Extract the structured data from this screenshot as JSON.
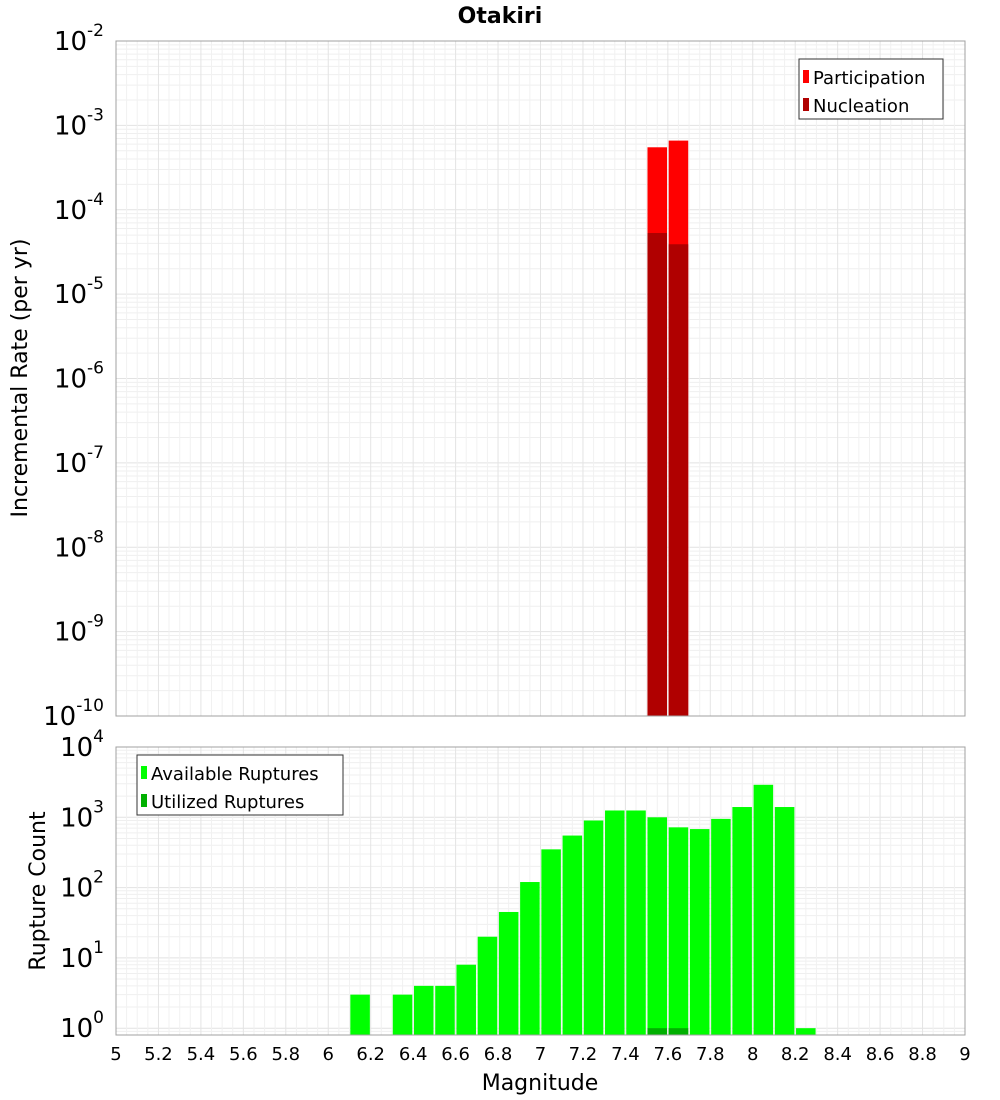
{
  "chart_data": [
    {
      "type": "bar",
      "title": "Otakiri",
      "ylabel": "Incremental Rate (per yr)",
      "xlabel": "",
      "x_ticks": [
        5,
        5.2,
        5.4,
        5.6,
        5.8,
        6,
        6.2,
        6.4,
        6.6,
        6.8,
        7,
        7.2,
        7.4,
        7.6,
        7.8,
        8,
        8.2,
        8.4,
        8.6,
        8.8,
        9
      ],
      "xlim": [
        5,
        9
      ],
      "ylim": [
        1e-10,
        0.01
      ],
      "y_scale": "log",
      "y_tick_exponents": [
        -10,
        -9,
        -8,
        -7,
        -6,
        -5,
        -4,
        -3,
        -2
      ],
      "grid": true,
      "legend_position": "top-right",
      "bar_width": 0.1,
      "series": [
        {
          "name": "Participation",
          "color": "#ff0000",
          "x": [
            7.55,
            7.65
          ],
          "values": [
            0.00055,
            0.00066
          ]
        },
        {
          "name": "Nucleation",
          "color": "#b00000",
          "x": [
            7.55,
            7.65
          ],
          "values": [
            5.3e-05,
            3.9e-05
          ]
        }
      ]
    },
    {
      "type": "bar",
      "title": "",
      "ylabel": "Rupture Count",
      "xlabel": "Magnitude",
      "x_ticks": [
        5,
        5.2,
        5.4,
        5.6,
        5.8,
        6,
        6.2,
        6.4,
        6.6,
        6.8,
        7,
        7.2,
        7.4,
        7.6,
        7.8,
        8,
        8.2,
        8.4,
        8.6,
        8.8,
        9
      ],
      "x_tick_labels": [
        "5",
        "5.2",
        "5.4",
        "5.6",
        "5.8",
        "6",
        "6.2",
        "6.4",
        "6.6",
        "6.8",
        "7",
        "7.2",
        "7.4",
        "7.6",
        "7.8",
        "8",
        "8.2",
        "8.4",
        "8.6",
        "8.8",
        "9"
      ],
      "xlim": [
        5,
        9
      ],
      "ylim": [
        0.8,
        10000
      ],
      "y_scale": "log",
      "y_tick_exponents": [
        0,
        1,
        2,
        3,
        4
      ],
      "grid": true,
      "legend_position": "top-left",
      "bar_width": 0.1,
      "series": [
        {
          "name": "Available Ruptures",
          "color": "#00ff00",
          "x": [
            6.15,
            6.35,
            6.45,
            6.55,
            6.65,
            6.75,
            6.85,
            6.95,
            7.05,
            7.15,
            7.25,
            7.35,
            7.45,
            7.55,
            7.65,
            7.75,
            7.85,
            7.95,
            8.05,
            8.15,
            8.25
          ],
          "values": [
            3,
            3,
            4,
            4,
            8,
            20,
            45,
            120,
            350,
            550,
            900,
            1250,
            1250,
            1000,
            720,
            680,
            950,
            1400,
            2900,
            1400,
            1
          ]
        },
        {
          "name": "Utilized Ruptures",
          "color": "#00b000",
          "x": [
            7.55,
            7.65
          ],
          "values": [
            1,
            1
          ]
        }
      ]
    }
  ]
}
